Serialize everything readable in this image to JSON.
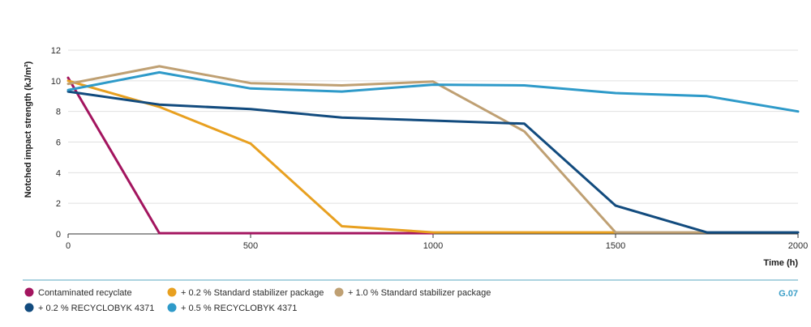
{
  "chart_data": {
    "type": "line",
    "title": "",
    "xlabel": "Time (h)",
    "ylabel": "Notched impact strength (kJ/m²)",
    "xlim": [
      0,
      2000
    ],
    "ylim": [
      0,
      12
    ],
    "xticks": [
      0,
      500,
      1000,
      1500,
      2000
    ],
    "yticks": [
      0,
      2,
      4,
      6,
      8,
      10,
      12
    ],
    "grid": true,
    "legend_position": "bottom",
    "figure_id": "G.07",
    "series": [
      {
        "name": "Contaminated recyclate",
        "color": "#a3155f",
        "points": [
          [
            0,
            10.2
          ],
          [
            250,
            0.05
          ],
          [
            500,
            0.05
          ],
          [
            750,
            0.05
          ],
          [
            1000,
            0.05
          ]
        ]
      },
      {
        "name": "+ 0.2 % Standard stabilizer package",
        "color": "#e8a020",
        "points": [
          [
            0,
            10.0
          ],
          [
            250,
            8.3
          ],
          [
            500,
            5.9
          ],
          [
            750,
            0.5
          ],
          [
            1000,
            0.1
          ],
          [
            1250,
            0.1
          ],
          [
            1500,
            0.1
          ]
        ]
      },
      {
        "name": "+ 1.0 % Standard stabilizer package",
        "color": "#bfa073",
        "points": [
          [
            0,
            9.8
          ],
          [
            250,
            10.95
          ],
          [
            500,
            9.85
          ],
          [
            750,
            9.7
          ],
          [
            1000,
            9.95
          ],
          [
            1250,
            6.7
          ],
          [
            1500,
            0.1
          ],
          [
            1750,
            0.1
          ]
        ]
      },
      {
        "name": "+ 0.2 % RECYCLOBYK 4371",
        "color": "#124b7e",
        "points": [
          [
            0,
            9.3
          ],
          [
            250,
            8.45
          ],
          [
            500,
            8.15
          ],
          [
            750,
            7.6
          ],
          [
            1000,
            7.4
          ],
          [
            1250,
            7.2
          ],
          [
            1500,
            1.85
          ],
          [
            1750,
            0.1
          ],
          [
            2000,
            0.1
          ]
        ]
      },
      {
        "name": "+ 0.5 % RECYCLOBYK 4371",
        "color": "#2e9ac9",
        "points": [
          [
            0,
            9.4
          ],
          [
            250,
            10.55
          ],
          [
            500,
            9.5
          ],
          [
            750,
            9.3
          ],
          [
            1000,
            9.75
          ],
          [
            1250,
            9.7
          ],
          [
            1500,
            9.2
          ],
          [
            1750,
            9.0
          ],
          [
            2000,
            8.0
          ]
        ]
      }
    ]
  }
}
